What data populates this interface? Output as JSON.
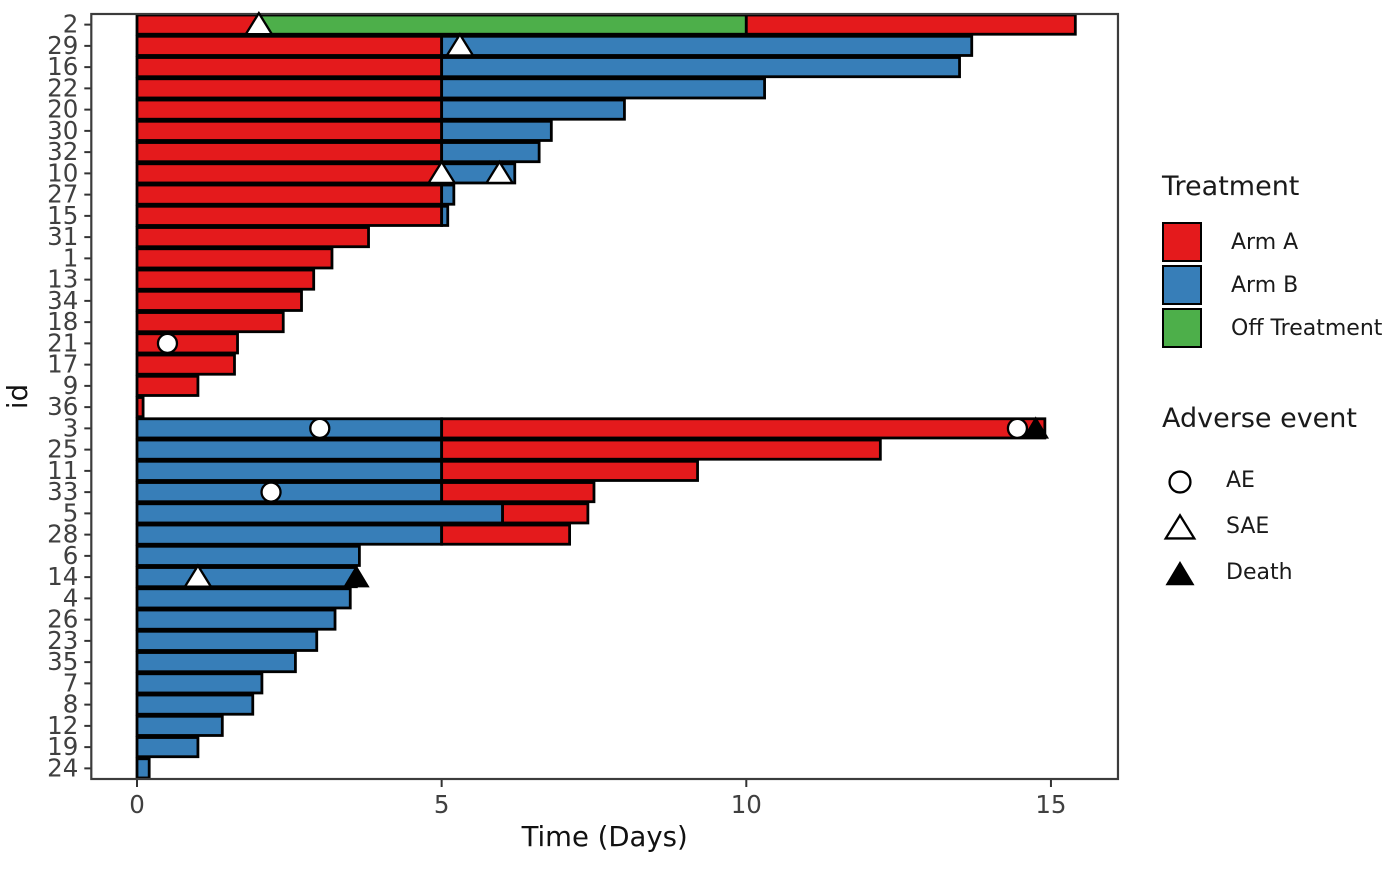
{
  "chart_data": {
    "type": "bar",
    "variant": "swimmer-plot",
    "title": "",
    "xlabel": "Time (Days)",
    "ylabel": "id",
    "x_ticks": [
      0,
      5,
      10,
      15
    ],
    "xlim": [
      -0.75,
      16.1
    ],
    "grid": false,
    "legend_position": "right",
    "arm_colors": {
      "Arm A": "#E41A1C",
      "Arm B": "#377EB8",
      "Off Treatment": "#4DAF4A"
    },
    "marker_shapes": {
      "AE": "open-circle",
      "SAE": "open-triangle",
      "Death": "filled-triangle"
    },
    "rows": [
      {
        "id": "2",
        "segments": [
          [
            "Arm A",
            0,
            2
          ],
          [
            "Off Treatment",
            2,
            10
          ],
          [
            "Arm A",
            10,
            15.4
          ]
        ],
        "events": [
          [
            "SAE",
            2
          ]
        ]
      },
      {
        "id": "29",
        "segments": [
          [
            "Arm A",
            0,
            5
          ],
          [
            "Arm B",
            5,
            13.7
          ]
        ],
        "events": [
          [
            "SAE",
            5.3
          ]
        ]
      },
      {
        "id": "16",
        "segments": [
          [
            "Arm A",
            0,
            5
          ],
          [
            "Arm B",
            5,
            13.5
          ]
        ],
        "events": []
      },
      {
        "id": "22",
        "segments": [
          [
            "Arm A",
            0,
            5
          ],
          [
            "Arm B",
            5,
            10.3
          ]
        ],
        "events": []
      },
      {
        "id": "20",
        "segments": [
          [
            "Arm A",
            0,
            5
          ],
          [
            "Arm B",
            5,
            8
          ]
        ],
        "events": []
      },
      {
        "id": "30",
        "segments": [
          [
            "Arm A",
            0,
            5
          ],
          [
            "Arm B",
            5,
            6.8
          ]
        ],
        "events": []
      },
      {
        "id": "32",
        "segments": [
          [
            "Arm A",
            0,
            5
          ],
          [
            "Arm B",
            5,
            6.6
          ]
        ],
        "events": []
      },
      {
        "id": "10",
        "segments": [
          [
            "Arm A",
            0,
            5
          ],
          [
            "Arm B",
            5,
            6.2
          ]
        ],
        "events": [
          [
            "SAE",
            5
          ],
          [
            "SAE",
            5.95
          ]
        ]
      },
      {
        "id": "27",
        "segments": [
          [
            "Arm A",
            0,
            5
          ],
          [
            "Arm B",
            5,
            5.2
          ]
        ],
        "events": []
      },
      {
        "id": "15",
        "segments": [
          [
            "Arm A",
            0,
            5
          ],
          [
            "Arm B",
            5,
            5.1
          ]
        ],
        "events": []
      },
      {
        "id": "31",
        "segments": [
          [
            "Arm A",
            0,
            3.8
          ]
        ],
        "events": []
      },
      {
        "id": "1",
        "segments": [
          [
            "Arm A",
            0,
            3.2
          ]
        ],
        "events": []
      },
      {
        "id": "13",
        "segments": [
          [
            "Arm A",
            0,
            2.9
          ]
        ],
        "events": []
      },
      {
        "id": "34",
        "segments": [
          [
            "Arm A",
            0,
            2.7
          ]
        ],
        "events": []
      },
      {
        "id": "18",
        "segments": [
          [
            "Arm A",
            0,
            2.4
          ]
        ],
        "events": []
      },
      {
        "id": "21",
        "segments": [
          [
            "Arm A",
            0,
            1.65
          ]
        ],
        "events": [
          [
            "AE",
            0.5
          ]
        ]
      },
      {
        "id": "17",
        "segments": [
          [
            "Arm A",
            0,
            1.6
          ]
        ],
        "events": []
      },
      {
        "id": "9",
        "segments": [
          [
            "Arm A",
            0,
            1
          ]
        ],
        "events": []
      },
      {
        "id": "36",
        "segments": [
          [
            "Arm A",
            0,
            0.1
          ]
        ],
        "events": []
      },
      {
        "id": "3",
        "segments": [
          [
            "Arm B",
            0,
            5
          ],
          [
            "Arm A",
            5,
            14.9
          ]
        ],
        "events": [
          [
            "AE",
            3
          ],
          [
            "AE",
            14.45
          ],
          [
            "Death",
            14.75
          ]
        ]
      },
      {
        "id": "25",
        "segments": [
          [
            "Arm B",
            0,
            5
          ],
          [
            "Arm A",
            5,
            12.2
          ]
        ],
        "events": []
      },
      {
        "id": "11",
        "segments": [
          [
            "Arm B",
            0,
            5
          ],
          [
            "Arm A",
            5,
            9.2
          ]
        ],
        "events": []
      },
      {
        "id": "33",
        "segments": [
          [
            "Arm B",
            0,
            5
          ],
          [
            "Arm A",
            5,
            7.5
          ]
        ],
        "events": [
          [
            "AE",
            2.2
          ]
        ]
      },
      {
        "id": "5",
        "segments": [
          [
            "Arm B",
            0,
            6
          ],
          [
            "Arm A",
            6,
            7.4
          ]
        ],
        "events": []
      },
      {
        "id": "28",
        "segments": [
          [
            "Arm B",
            0,
            5
          ],
          [
            "Arm A",
            5,
            7.1
          ]
        ],
        "events": []
      },
      {
        "id": "6",
        "segments": [
          [
            "Arm B",
            0,
            3.65
          ]
        ],
        "events": []
      },
      {
        "id": "14",
        "segments": [
          [
            "Arm B",
            0,
            3.6
          ]
        ],
        "events": [
          [
            "SAE",
            1
          ],
          [
            "Death",
            3.6
          ]
        ]
      },
      {
        "id": "4",
        "segments": [
          [
            "Arm B",
            0,
            3.5
          ]
        ],
        "events": []
      },
      {
        "id": "26",
        "segments": [
          [
            "Arm B",
            0,
            3.25
          ]
        ],
        "events": []
      },
      {
        "id": "23",
        "segments": [
          [
            "Arm B",
            0,
            2.95
          ]
        ],
        "events": []
      },
      {
        "id": "35",
        "segments": [
          [
            "Arm B",
            0,
            2.6
          ]
        ],
        "events": []
      },
      {
        "id": "7",
        "segments": [
          [
            "Arm B",
            0,
            2.05
          ]
        ],
        "events": []
      },
      {
        "id": "8",
        "segments": [
          [
            "Arm B",
            0,
            1.9
          ]
        ],
        "events": []
      },
      {
        "id": "12",
        "segments": [
          [
            "Arm B",
            0,
            1.4
          ]
        ],
        "events": []
      },
      {
        "id": "19",
        "segments": [
          [
            "Arm B",
            0,
            1
          ]
        ],
        "events": []
      },
      {
        "id": "24",
        "segments": [
          [
            "Arm B",
            0,
            0.2
          ]
        ],
        "events": []
      }
    ]
  },
  "treatment_legend": {
    "title": "Treatment",
    "items": [
      {
        "label": "Arm A",
        "color": "#E41A1C"
      },
      {
        "label": "Arm B",
        "color": "#377EB8"
      },
      {
        "label": "Off Treatment",
        "color": "#4DAF4A"
      }
    ]
  },
  "adverse_legend": {
    "title": "Adverse event",
    "items": [
      {
        "label": "AE",
        "marker": "open-circle"
      },
      {
        "label": "SAE",
        "marker": "open-triangle"
      },
      {
        "label": "Death",
        "marker": "filled-triangle"
      }
    ]
  }
}
